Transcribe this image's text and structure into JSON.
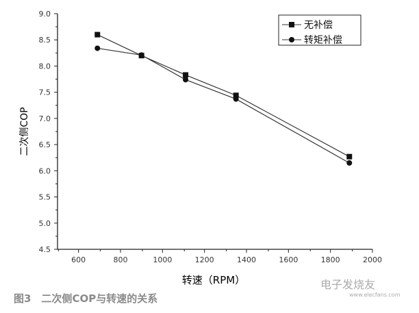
{
  "chart_data": {
    "type": "line",
    "xlabel": "转速（RPM）",
    "ylabel": "二次侧COP",
    "xlim": [
      500,
      2000
    ],
    "ylim": [
      4.5,
      9.0
    ],
    "xticks": [
      "600",
      "800",
      "1000",
      "1200",
      "1400",
      "1600",
      "1800",
      "2000"
    ],
    "yticks": [
      "4.5",
      "5.0",
      "5.5",
      "6.0",
      "6.5",
      "7.0",
      "7.5",
      "8.0",
      "8.5",
      "9.0"
    ],
    "grid": false,
    "legend": "top-right",
    "series": [
      {
        "name": "无补偿",
        "marker": "square",
        "x": [
          690,
          900,
          1110,
          1350,
          1890
        ],
        "y": [
          8.6,
          8.2,
          7.83,
          7.44,
          6.27
        ]
      },
      {
        "name": "转矩补偿",
        "marker": "circle",
        "x": [
          690,
          900,
          1110,
          1350,
          1890
        ],
        "y": [
          8.34,
          8.21,
          7.74,
          7.37,
          6.15
        ]
      }
    ]
  },
  "caption": "图3　二次侧COP与转速的关系",
  "watermark": {
    "text": "电子发烧友",
    "url": "www.elecfans.com"
  }
}
